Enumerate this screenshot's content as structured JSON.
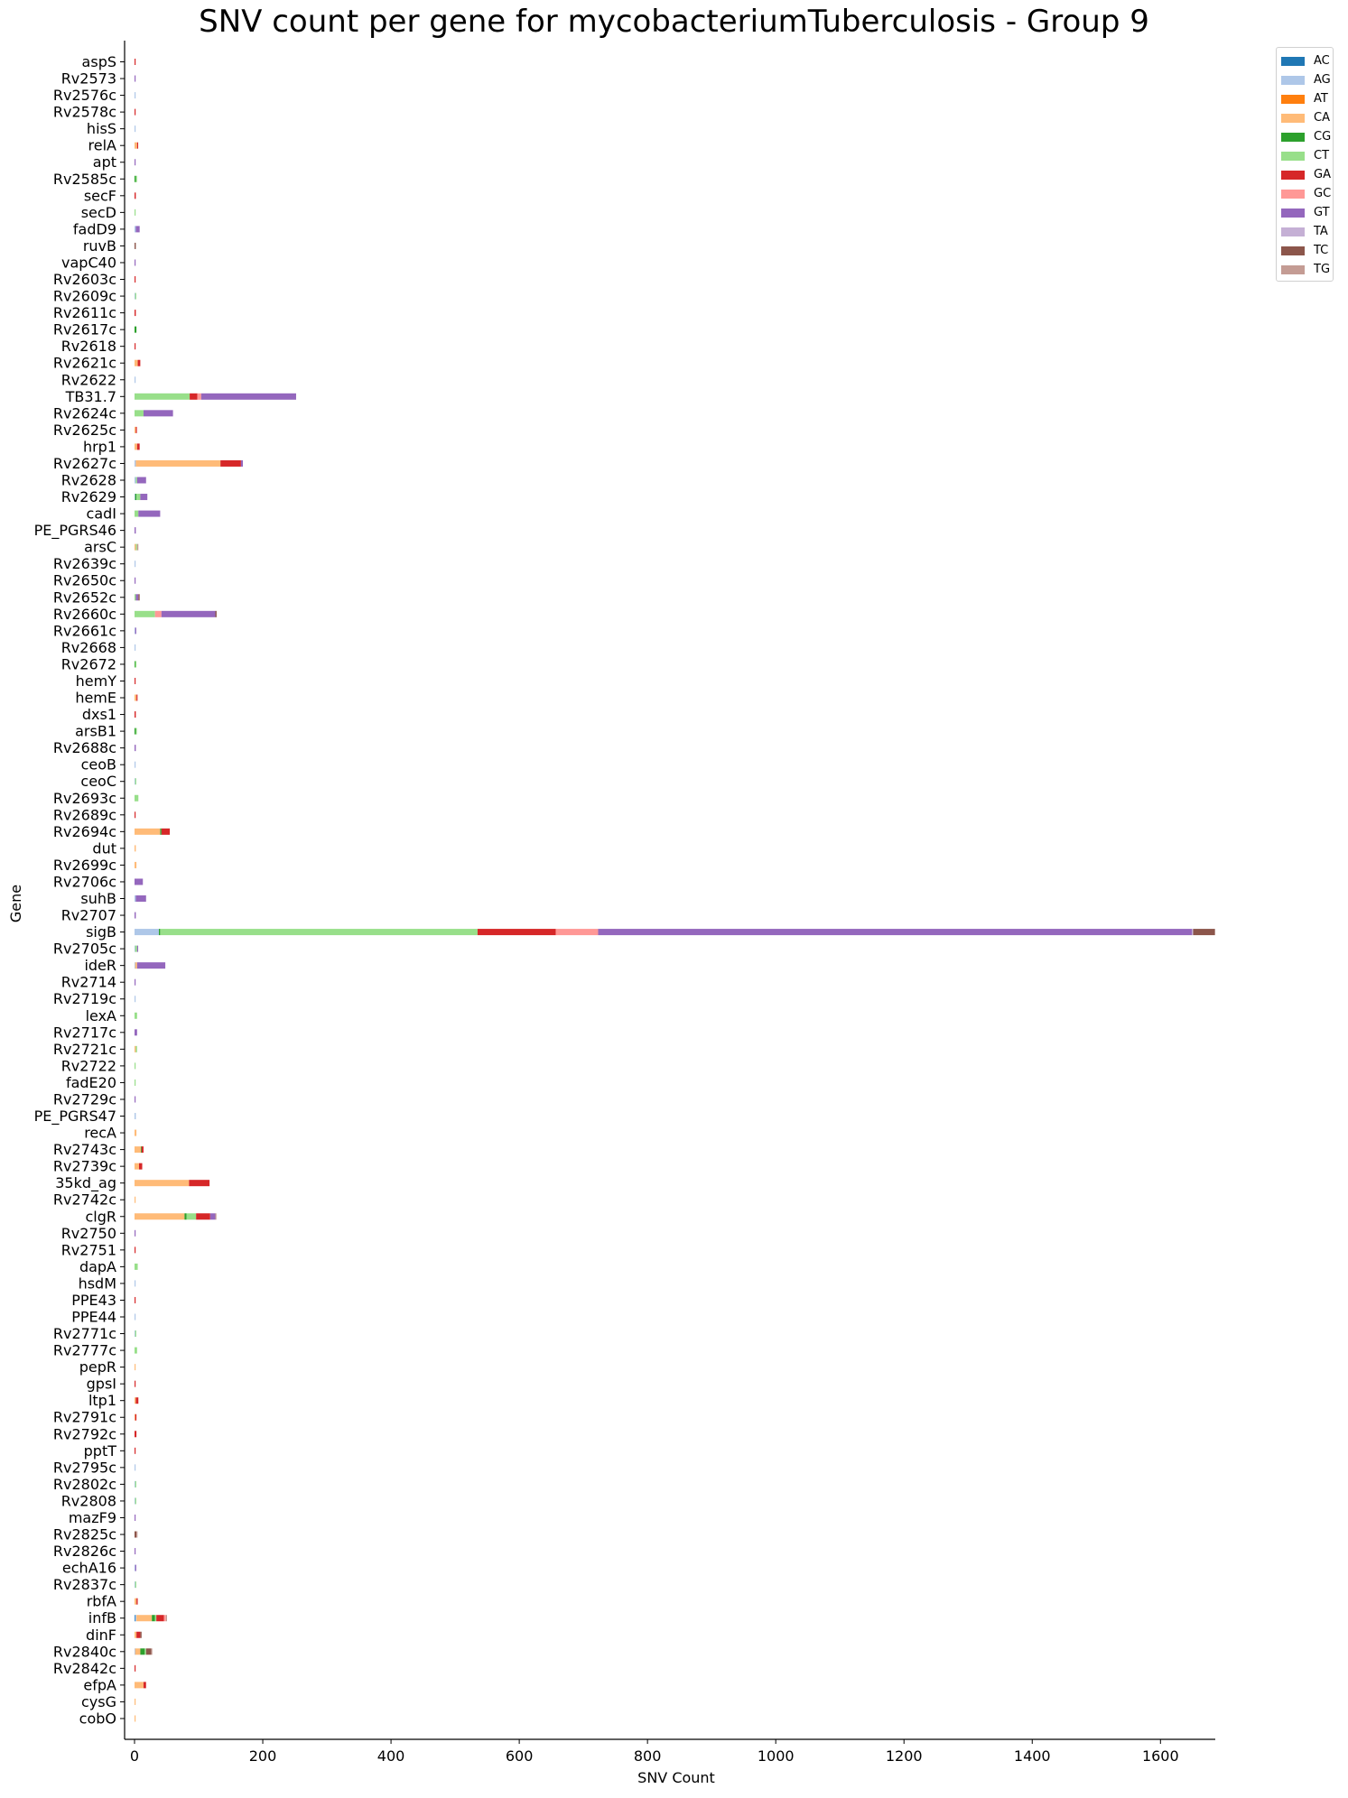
{
  "chart_data": {
    "type": "bar",
    "orientation": "horizontal",
    "stacked": true,
    "title": "SNV count per gene for mycobacteriumTuberculosis - Group 9",
    "xlabel": "SNV Count",
    "ylabel": "Gene",
    "xlim": [
      0,
      1685
    ],
    "xticks": [
      0,
      200,
      400,
      600,
      800,
      1000,
      1200,
      1400,
      1600
    ],
    "grid": false,
    "legend_position": "top-right",
    "categories": [
      "aspS",
      "Rv2573",
      "Rv2576c",
      "Rv2578c",
      "hisS",
      "relA",
      "apt",
      "Rv2585c",
      "secF",
      "secD",
      "fadD9",
      "ruvB",
      "vapC40",
      "Rv2603c",
      "Rv2609c",
      "Rv2611c",
      "Rv2617c",
      "Rv2618",
      "Rv2621c",
      "Rv2622",
      "TB31.7",
      "Rv2624c",
      "Rv2625c",
      "hrp1",
      "Rv2627c",
      "Rv2628",
      "Rv2629",
      "cadI",
      "PE_PGRS46",
      "arsC",
      "Rv2639c",
      "Rv2650c",
      "Rv2652c",
      "Rv2660c",
      "Rv2661c",
      "Rv2668",
      "Rv2672",
      "hemY",
      "hemE",
      "dxs1",
      "arsB1",
      "Rv2688c",
      "ceoB",
      "ceoC",
      "Rv2693c",
      "Rv2689c",
      "Rv2694c",
      "dut",
      "Rv2699c",
      "Rv2706c",
      "suhB",
      "Rv2707",
      "sigB",
      "Rv2705c",
      "ideR",
      "Rv2714",
      "Rv2719c",
      "lexA",
      "Rv2717c",
      "Rv2721c",
      "Rv2722",
      "fadE20",
      "Rv2729c",
      "PE_PGRS47",
      "recA",
      "Rv2743c",
      "Rv2739c",
      "35kd_ag",
      "Rv2742c",
      "clgR",
      "Rv2750",
      "Rv2751",
      "dapA",
      "hsdM",
      "PPE43",
      "PPE44",
      "Rv2771c",
      "Rv2777c",
      "pepR",
      "gpsI",
      "ltp1",
      "Rv2791c",
      "Rv2792c",
      "pptT",
      "Rv2795c",
      "Rv2802c",
      "Rv2808",
      "mazF9",
      "Rv2825c",
      "Rv2826c",
      "echA16",
      "Rv2837c",
      "rbfA",
      "infB",
      "dinF",
      "Rv2840c",
      "Rv2842c",
      "efpA",
      "cysG",
      "cobO"
    ],
    "series": [
      {
        "name": "AC",
        "color": "#1f77b4",
        "values": [
          0,
          0,
          0,
          0,
          0,
          0,
          0,
          0,
          0,
          0,
          0,
          0,
          0,
          0,
          0,
          0,
          0,
          0,
          0,
          0,
          0,
          0,
          0,
          0,
          0,
          0,
          0,
          0,
          0,
          0,
          0,
          0,
          0,
          0,
          0,
          0,
          0,
          0,
          0,
          0,
          0,
          0,
          0,
          0,
          0,
          0,
          0,
          0,
          0,
          0,
          0,
          0,
          0,
          0,
          0,
          0,
          0,
          0,
          0,
          0,
          0,
          0,
          0,
          0,
          0,
          0,
          0,
          0,
          0,
          0,
          0,
          0,
          0,
          0,
          0,
          0,
          0,
          0,
          0,
          0,
          0,
          0,
          0,
          0,
          0,
          0,
          0,
          0,
          0,
          0,
          0,
          0,
          0,
          1,
          0,
          0,
          0,
          0,
          0,
          0
        ]
      },
      {
        "name": "AG",
        "color": "#aec7e8",
        "values": [
          0,
          0,
          1,
          0,
          1,
          0,
          0,
          0,
          0,
          0,
          2,
          0,
          0,
          0,
          1,
          0,
          0,
          0,
          0,
          1,
          0,
          0,
          0,
          0,
          2,
          2,
          1,
          0,
          0,
          0,
          1,
          0,
          0,
          0,
          1,
          1,
          0,
          0,
          0,
          0,
          0,
          0,
          1,
          1,
          0,
          0,
          0,
          0,
          0,
          0,
          2,
          0,
          38,
          1,
          1,
          0,
          1,
          0,
          0,
          0,
          0,
          0,
          0,
          2,
          0,
          0,
          0,
          0,
          0,
          0,
          0,
          0,
          0,
          1,
          0,
          1,
          1,
          0,
          0,
          0,
          0,
          0,
          0,
          0,
          1,
          1,
          1,
          0,
          0,
          0,
          1,
          1,
          0,
          2,
          0,
          1,
          0,
          0,
          0,
          0
        ]
      },
      {
        "name": "AT",
        "color": "#ff7f0e",
        "values": [
          0,
          0,
          0,
          0,
          0,
          0,
          0,
          0,
          0,
          0,
          0,
          0,
          0,
          0,
          0,
          0,
          0,
          0,
          0,
          0,
          0,
          0,
          0,
          0,
          0,
          0,
          0,
          0,
          0,
          0,
          0,
          0,
          0,
          0,
          0,
          0,
          0,
          0,
          0,
          0,
          0,
          0,
          0,
          0,
          0,
          0,
          0,
          0,
          0,
          0,
          0,
          0,
          0,
          0,
          0,
          0,
          0,
          0,
          0,
          0,
          0,
          0,
          0,
          0,
          0,
          0,
          0,
          0,
          0,
          0,
          0,
          0,
          0,
          0,
          0,
          0,
          0,
          0,
          0,
          0,
          0,
          0,
          0,
          0,
          0,
          0,
          0,
          0,
          0,
          0,
          0,
          0,
          0,
          0,
          0,
          0,
          0,
          0,
          0,
          0
        ]
      },
      {
        "name": "CA",
        "color": "#ffbb78",
        "values": [
          0,
          0,
          0,
          0,
          0,
          4,
          0,
          0,
          0,
          0,
          0,
          0,
          0,
          0,
          0,
          0,
          0,
          0,
          5,
          0,
          0,
          0,
          2,
          4,
          132,
          0,
          0,
          0,
          0,
          2,
          0,
          0,
          0,
          0,
          0,
          0,
          0,
          0,
          3,
          0,
          0,
          0,
          0,
          0,
          0,
          0,
          40,
          2,
          3,
          0,
          0,
          0,
          0,
          0,
          3,
          0,
          0,
          0,
          0,
          2,
          0,
          0,
          0,
          0,
          3,
          10,
          7,
          85,
          1,
          78,
          0,
          0,
          0,
          0,
          0,
          0,
          0,
          0,
          1,
          0,
          2,
          1,
          0,
          0,
          0,
          0,
          0,
          0,
          0,
          0,
          0,
          0,
          3,
          24,
          3,
          8,
          0,
          14,
          1,
          1
        ]
      },
      {
        "name": "CG",
        "color": "#2ca02c",
        "values": [
          0,
          0,
          0,
          0,
          0,
          0,
          0,
          2,
          0,
          0,
          0,
          0,
          0,
          0,
          0,
          0,
          3,
          0,
          0,
          0,
          0,
          0,
          0,
          0,
          0,
          0,
          2,
          0,
          0,
          0,
          0,
          0,
          0,
          0,
          0,
          0,
          1,
          0,
          0,
          0,
          2,
          0,
          0,
          0,
          0,
          0,
          2,
          0,
          0,
          0,
          0,
          0,
          2,
          0,
          0,
          0,
          0,
          0,
          0,
          0,
          0,
          0,
          0,
          0,
          0,
          1,
          0,
          0,
          0,
          3,
          0,
          0,
          0,
          0,
          0,
          0,
          0,
          0,
          0,
          0,
          0,
          0,
          0,
          0,
          0,
          0,
          0,
          0,
          0,
          0,
          0,
          0,
          0,
          5,
          0,
          7,
          0,
          0,
          0,
          0
        ]
      },
      {
        "name": "CT",
        "color": "#98df8a",
        "values": [
          0,
          0,
          0,
          0,
          0,
          0,
          0,
          2,
          0,
          1,
          0,
          0,
          0,
          0,
          1,
          0,
          0,
          0,
          0,
          0,
          86,
          14,
          0,
          0,
          0,
          2,
          6,
          6,
          0,
          2,
          0,
          0,
          2,
          32,
          0,
          0,
          2,
          0,
          0,
          0,
          1,
          0,
          0,
          1,
          6,
          0,
          0,
          0,
          0,
          0,
          0,
          0,
          495,
          3,
          0,
          0,
          0,
          4,
          0,
          2,
          1,
          1,
          0,
          0,
          0,
          0,
          0,
          0,
          0,
          15,
          0,
          0,
          5,
          0,
          0,
          0,
          1,
          4,
          0,
          0,
          0,
          0,
          0,
          0,
          0,
          1,
          1,
          0,
          0,
          0,
          0,
          1,
          0,
          2,
          0,
          2,
          0,
          0,
          0,
          0
        ]
      },
      {
        "name": "GA",
        "color": "#d62728",
        "values": [
          1,
          0,
          0,
          1,
          0,
          1,
          0,
          0,
          2,
          0,
          0,
          0,
          0,
          1,
          0,
          2,
          0,
          1,
          4,
          0,
          12,
          0,
          1,
          4,
          32,
          0,
          0,
          0,
          0,
          0,
          0,
          0,
          0,
          0,
          0,
          0,
          0,
          1,
          1,
          2,
          0,
          0,
          0,
          0,
          0,
          1,
          13,
          0,
          0,
          0,
          0,
          0,
          122,
          0,
          0,
          0,
          0,
          0,
          0,
          0,
          0,
          0,
          0,
          0,
          0,
          3,
          5,
          32,
          0,
          22,
          0,
          1,
          0,
          0,
          1,
          0,
          0,
          0,
          0,
          1,
          4,
          2,
          3,
          1,
          0,
          0,
          0,
          0,
          0,
          0,
          0,
          0,
          2,
          12,
          6,
          0,
          1,
          4,
          0,
          0
        ]
      },
      {
        "name": "GC",
        "color": "#ff9896",
        "values": [
          0,
          0,
          0,
          0,
          0,
          0,
          0,
          0,
          0,
          0,
          0,
          0,
          0,
          0,
          0,
          0,
          0,
          0,
          0,
          0,
          6,
          0,
          0,
          0,
          0,
          0,
          0,
          0,
          0,
          0,
          0,
          0,
          0,
          10,
          0,
          0,
          0,
          0,
          0,
          0,
          0,
          0,
          0,
          0,
          0,
          0,
          0,
          0,
          0,
          0,
          0,
          0,
          66,
          0,
          0,
          0,
          0,
          0,
          0,
          0,
          0,
          0,
          0,
          0,
          0,
          0,
          0,
          0,
          0,
          0,
          0,
          0,
          0,
          0,
          0,
          0,
          0,
          0,
          0,
          0,
          0,
          0,
          0,
          0,
          0,
          0,
          0,
          0,
          0,
          0,
          0,
          0,
          0,
          3,
          0,
          0,
          0,
          0,
          0,
          0
        ]
      },
      {
        "name": "GT",
        "color": "#9467bd",
        "values": [
          0,
          1,
          0,
          0,
          0,
          0,
          1,
          0,
          0,
          0,
          6,
          0,
          1,
          0,
          0,
          0,
          0,
          0,
          0,
          0,
          148,
          46,
          0,
          0,
          3,
          14,
          11,
          34,
          2,
          0,
          0,
          1,
          4,
          84,
          1,
          0,
          0,
          0,
          0,
          0,
          0,
          2,
          0,
          0,
          0,
          0,
          0,
          0,
          0,
          13,
          16,
          2,
          926,
          1,
          44,
          1,
          0,
          0,
          4,
          0,
          0,
          0,
          1,
          0,
          0,
          0,
          0,
          0,
          0,
          8,
          1,
          0,
          0,
          0,
          0,
          0,
          0,
          0,
          0,
          0,
          0,
          0,
          0,
          0,
          0,
          0,
          0,
          1,
          0,
          1,
          1,
          0,
          0,
          0,
          0,
          0,
          0,
          0,
          0,
          0
        ]
      },
      {
        "name": "TA",
        "color": "#c5b0d5",
        "values": [
          0,
          0,
          0,
          0,
          0,
          0,
          0,
          0,
          0,
          0,
          0,
          0,
          0,
          0,
          0,
          0,
          0,
          0,
          0,
          0,
          0,
          0,
          0,
          0,
          0,
          0,
          0,
          0,
          0,
          0,
          0,
          0,
          0,
          0,
          0,
          0,
          0,
          0,
          0,
          0,
          0,
          0,
          0,
          0,
          0,
          0,
          0,
          0,
          0,
          0,
          0,
          0,
          2,
          0,
          0,
          0,
          0,
          0,
          0,
          0,
          0,
          0,
          0,
          0,
          0,
          0,
          0,
          0,
          0,
          0,
          0,
          0,
          0,
          0,
          0,
          0,
          0,
          0,
          0,
          0,
          0,
          0,
          0,
          0,
          0,
          0,
          0,
          0,
          0,
          0,
          0,
          0,
          0,
          0,
          0,
          0,
          0,
          0,
          0,
          0
        ]
      },
      {
        "name": "TC",
        "color": "#8c564b",
        "values": [
          0,
          0,
          0,
          0,
          0,
          0,
          0,
          0,
          0,
          0,
          0,
          2,
          0,
          0,
          0,
          0,
          0,
          0,
          0,
          0,
          0,
          0,
          0,
          0,
          0,
          0,
          0,
          0,
          0,
          0,
          0,
          0,
          2,
          2,
          0,
          0,
          0,
          0,
          0,
          0,
          0,
          0,
          0,
          0,
          0,
          0,
          0,
          0,
          0,
          0,
          0,
          0,
          34,
          0,
          0,
          0,
          0,
          0,
          0,
          0,
          0,
          0,
          0,
          0,
          0,
          0,
          0,
          0,
          0,
          0,
          0,
          0,
          0,
          0,
          0,
          0,
          0,
          0,
          0,
          0,
          0,
          0,
          0,
          0,
          0,
          0,
          0,
          0,
          3,
          0,
          0,
          0,
          0,
          0,
          2,
          8,
          0,
          0,
          0,
          0
        ]
      },
      {
        "name": "TG",
        "color": "#c49c94",
        "values": [
          0,
          0,
          0,
          0,
          0,
          0,
          0,
          0,
          0,
          0,
          0,
          0,
          0,
          0,
          0,
          0,
          0,
          0,
          0,
          0,
          0,
          0,
          0,
          0,
          0,
          0,
          0,
          0,
          0,
          2,
          0,
          0,
          0,
          0,
          0,
          0,
          0,
          0,
          0,
          0,
          0,
          0,
          0,
          0,
          0,
          0,
          0,
          0,
          0,
          0,
          0,
          0,
          0,
          0,
          0,
          0,
          0,
          0,
          0,
          0,
          0,
          0,
          0,
          0,
          0,
          0,
          0,
          0,
          0,
          1,
          0,
          0,
          0,
          0,
          0,
          0,
          0,
          0,
          0,
          0,
          0,
          0,
          0,
          0,
          0,
          0,
          0,
          0,
          1,
          0,
          0,
          0,
          0,
          1,
          0,
          1,
          0,
          0,
          0,
          0
        ]
      }
    ]
  }
}
